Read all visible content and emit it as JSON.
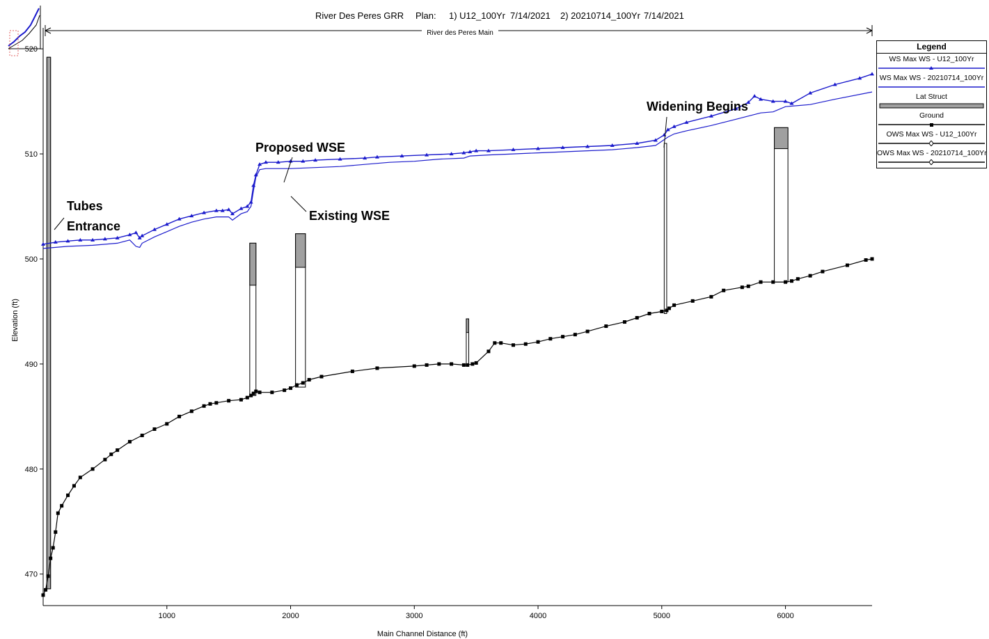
{
  "header": {
    "project": "River Des Peres GRR",
    "plan_label": "Plan:",
    "plan1": "1) U12_100Yr",
    "plan1_date": "7/14/2021",
    "plan2": "2) 20210714_100Yr",
    "plan2_date": "7/14/2021",
    "reach": "River des Peres Main"
  },
  "legend": {
    "title": "Legend",
    "items": [
      {
        "label": "WS  Max WS - U12_100Yr",
        "color": "#1a1acc",
        "marker": "triangle"
      },
      {
        "label": "WS  Max WS - 20210714_100Yr",
        "color": "#1a1acc",
        "marker": "none"
      },
      {
        "label": "Lat Struct",
        "color": "#a0a0a0",
        "marker": "box"
      },
      {
        "label": "Ground",
        "color": "#000000",
        "marker": "square"
      },
      {
        "label": "OWS  Max WS - U12_100Yr",
        "color": "#000000",
        "marker": "diamond"
      },
      {
        "label": "OWS  Max WS - 20210714_100Yr",
        "color": "#000000",
        "marker": "diamond"
      }
    ]
  },
  "annotations": {
    "tubes_1": "Tubes",
    "tubes_2": "Entrance",
    "proposed": "Proposed WSE",
    "existing": "Existing WSE",
    "widening": "Widening Begins"
  },
  "chart_data": {
    "type": "line",
    "title": "River Des Peres GRR",
    "xlabel": "Main Channel Distance (ft)",
    "ylabel": "Elevation (ft)",
    "xlim": [
      0,
      6700
    ],
    "ylim": [
      467,
      522
    ],
    "xticks": [
      1000,
      2000,
      3000,
      4000,
      5000,
      6000
    ],
    "yticks": [
      470,
      480,
      490,
      500,
      510,
      520
    ],
    "grid": false,
    "legend_position": "right",
    "colors": {
      "ws": "#1a1acc",
      "ground": "#000000",
      "struct": "#a0a0a0"
    },
    "series": [
      {
        "name": "WS  Max WS - U12_100Yr",
        "x": [
          0,
          100,
          200,
          300,
          400,
          500,
          600,
          700,
          750,
          780,
          800,
          900,
          1000,
          1100,
          1200,
          1300,
          1400,
          1450,
          1500,
          1530,
          1600,
          1650,
          1680,
          1700,
          1720,
          1750,
          1800,
          1900,
          2000,
          2100,
          2200,
          2400,
          2600,
          2700,
          2900,
          3100,
          3300,
          3400,
          3450,
          3500,
          3600,
          3800,
          4000,
          4200,
          4400,
          4600,
          4800,
          4950,
          5020,
          5050,
          5100,
          5200,
          5400,
          5600,
          5700,
          5750,
          5800,
          5900,
          6000,
          6050,
          6200,
          6400,
          6600,
          6700
        ],
        "y": [
          501.4,
          501.6,
          501.7,
          501.8,
          501.8,
          501.9,
          502.0,
          502.3,
          502.5,
          502.0,
          502.2,
          502.8,
          503.3,
          503.8,
          504.1,
          504.4,
          504.6,
          504.6,
          504.7,
          504.3,
          504.8,
          505.0,
          505.4,
          507.0,
          508.0,
          509.0,
          509.2,
          509.2,
          509.3,
          509.3,
          509.4,
          509.5,
          509.6,
          509.7,
          509.8,
          509.9,
          510.0,
          510.1,
          510.2,
          510.3,
          510.3,
          510.4,
          510.5,
          510.6,
          510.7,
          510.8,
          511.0,
          511.3,
          511.8,
          512.3,
          512.6,
          513.0,
          513.6,
          514.3,
          514.9,
          515.5,
          515.2,
          515.0,
          515.0,
          514.8,
          515.8,
          516.6,
          517.2,
          517.6
        ]
      },
      {
        "name": "WS  Max WS - 20210714_100Yr",
        "x": [
          0,
          200,
          400,
          600,
          700,
          750,
          780,
          800,
          900,
          1000,
          1100,
          1200,
          1300,
          1400,
          1500,
          1530,
          1600,
          1650,
          1680,
          1700,
          1720,
          1750,
          1800,
          2000,
          2200,
          2400,
          2600,
          2800,
          3000,
          3200,
          3400,
          3450,
          3600,
          3800,
          4000,
          4200,
          4400,
          4600,
          4800,
          4950,
          5000,
          5050,
          5100,
          5200,
          5400,
          5600,
          5800,
          5900,
          6000,
          6200,
          6400,
          6700
        ],
        "y": [
          501.0,
          501.2,
          501.3,
          501.5,
          501.8,
          501.2,
          501.1,
          501.5,
          502.1,
          502.6,
          503.1,
          503.5,
          503.8,
          504.0,
          504.0,
          503.7,
          504.3,
          504.5,
          505.0,
          506.5,
          507.8,
          508.5,
          508.6,
          508.6,
          508.7,
          508.8,
          509.0,
          509.2,
          509.3,
          509.5,
          509.6,
          509.8,
          509.9,
          510.0,
          510.1,
          510.2,
          510.3,
          510.4,
          510.6,
          510.8,
          511.2,
          511.6,
          511.9,
          512.2,
          512.7,
          513.3,
          513.9,
          514.0,
          514.5,
          514.7,
          515.2,
          515.9
        ]
      },
      {
        "name": "Ground",
        "x": [
          0,
          20,
          40,
          60,
          80,
          100,
          120,
          150,
          200,
          250,
          300,
          400,
          500,
          550,
          600,
          700,
          800,
          900,
          1000,
          1100,
          1200,
          1300,
          1350,
          1400,
          1500,
          1600,
          1650,
          1680,
          1700,
          1720,
          1750,
          1850,
          1950,
          2000,
          2050,
          2100,
          2150,
          2250,
          2500,
          2700,
          3000,
          3100,
          3200,
          3300,
          3400,
          3430,
          3470,
          3500,
          3600,
          3650,
          3700,
          3800,
          3900,
          4000,
          4100,
          4200,
          4300,
          4400,
          4550,
          4700,
          4800,
          4900,
          5000,
          5040,
          5060,
          5100,
          5250,
          5400,
          5500,
          5650,
          5700,
          5800,
          5900,
          6000,
          6050,
          6100,
          6200,
          6300,
          6500,
          6650,
          6700
        ],
        "y": [
          468.0,
          468.5,
          469.8,
          471.5,
          472.5,
          474.0,
          475.8,
          476.5,
          477.5,
          478.4,
          479.2,
          480.0,
          480.9,
          481.4,
          481.8,
          482.6,
          483.2,
          483.8,
          484.3,
          485.0,
          485.5,
          486.0,
          486.2,
          486.3,
          486.5,
          486.6,
          486.8,
          487.0,
          487.2,
          487.4,
          487.3,
          487.3,
          487.5,
          487.7,
          488.0,
          488.2,
          488.5,
          488.8,
          489.3,
          489.6,
          489.8,
          489.9,
          490.0,
          490.0,
          489.9,
          489.9,
          490.0,
          490.1,
          491.2,
          492.0,
          492.0,
          491.8,
          491.9,
          492.1,
          492.4,
          492.6,
          492.8,
          493.1,
          493.6,
          494.0,
          494.4,
          494.8,
          495.0,
          495.1,
          495.3,
          495.6,
          496.0,
          496.4,
          497.0,
          497.3,
          497.4,
          497.8,
          497.8,
          497.8,
          497.9,
          498.1,
          498.4,
          498.8,
          499.4,
          499.9,
          500.0
        ]
      }
    ],
    "lateral_structures": [
      {
        "x": [
          30,
          60
        ],
        "bottom": 468.6,
        "top": 519.2
      },
      {
        "x": [
          1670,
          1720
        ],
        "bottom": 487.0,
        "top": 501.5,
        "fill_to": 497.5
      },
      {
        "x": [
          2040,
          2120
        ],
        "bottom": 487.8,
        "top": 502.4,
        "fill_to": 499.2
      },
      {
        "x": [
          3420,
          3440
        ],
        "bottom": 490.0,
        "top": 494.3,
        "fill_to": 493.0
      },
      {
        "x": [
          5020,
          5040
        ],
        "bottom": 494.8,
        "top": 511.0,
        "fill_to": 511.0
      },
      {
        "x": [
          5910,
          6020
        ],
        "bottom": 497.8,
        "top": 512.5,
        "fill_to": 510.5
      }
    ]
  }
}
